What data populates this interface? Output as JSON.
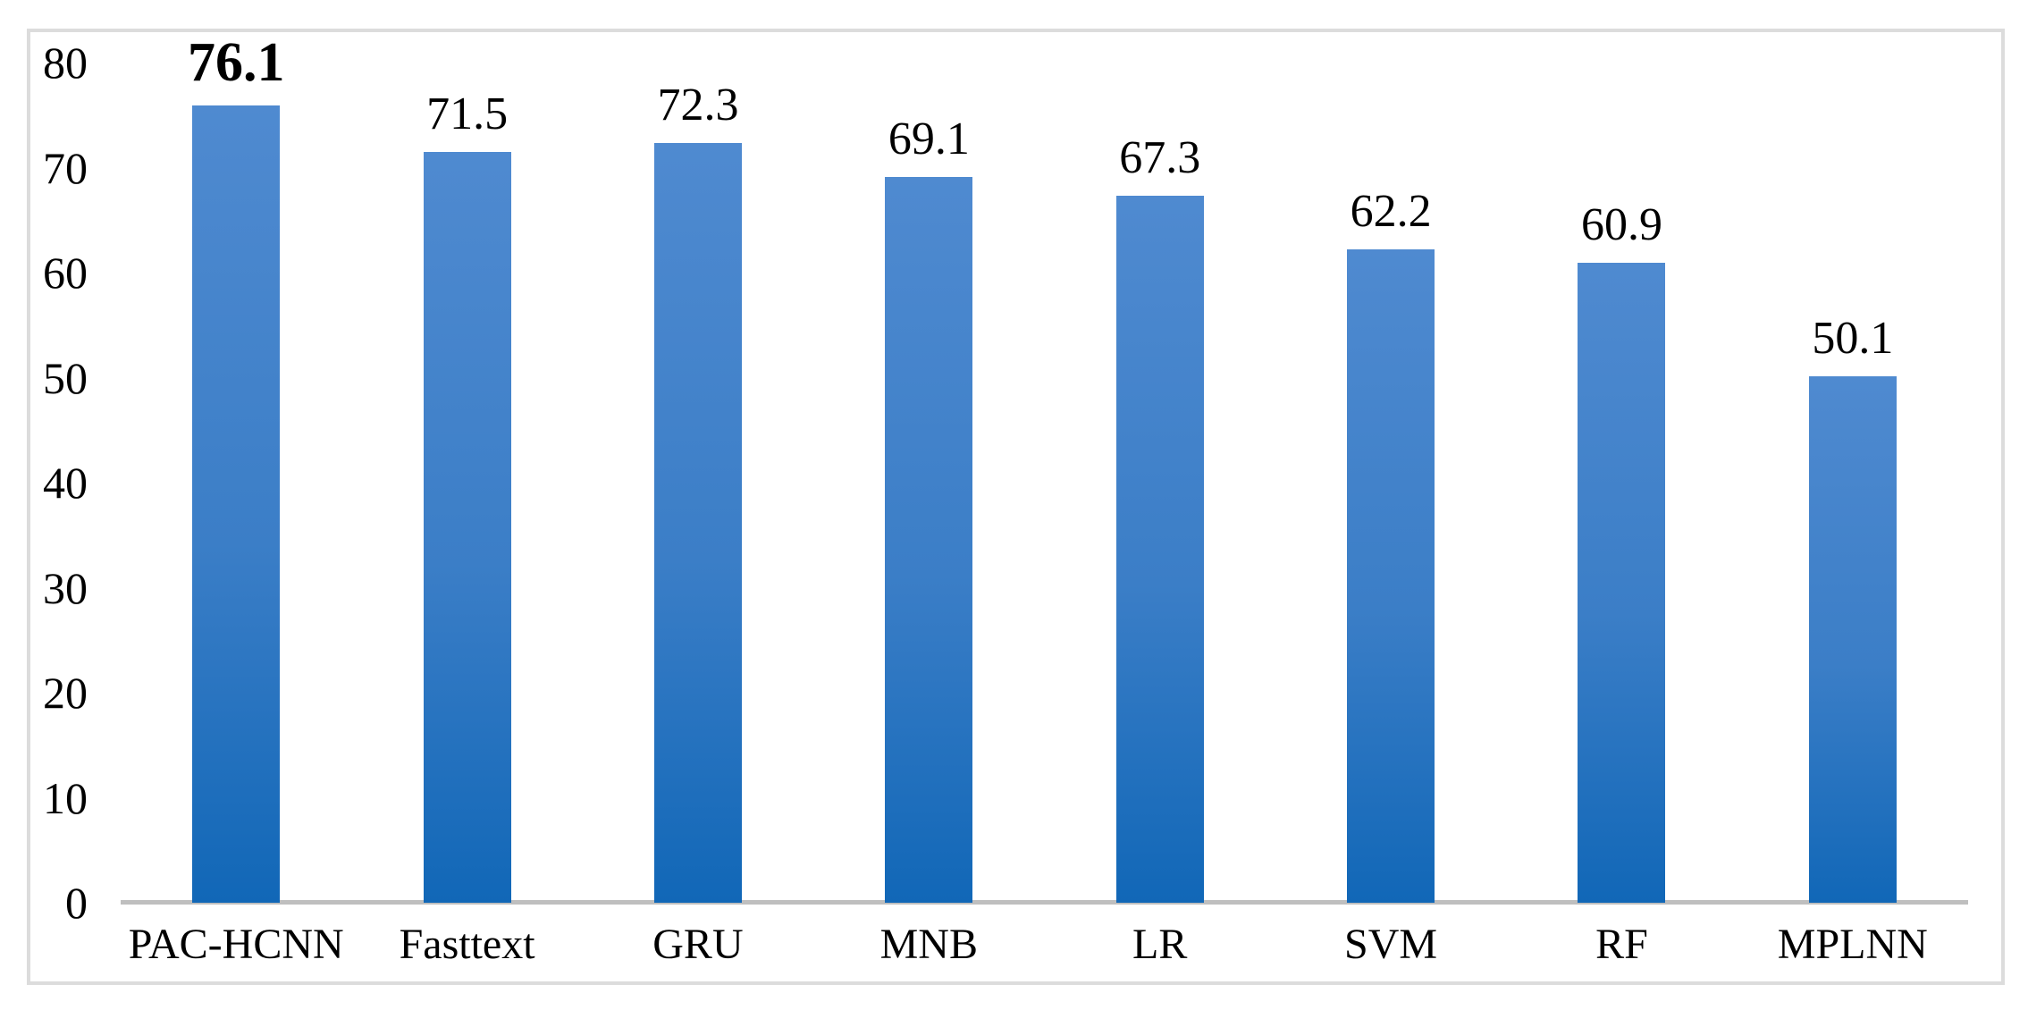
{
  "figure": {
    "background_color": "#ffffff",
    "frame_border_color": "#dcdcdc"
  },
  "chart_data": {
    "type": "bar",
    "title": "",
    "xlabel": "",
    "ylabel": "",
    "categories": [
      "PAC-HCNN",
      "Fasttext",
      "GRU",
      "MNB",
      "LR",
      "SVM",
      "RF",
      "MPLNN"
    ],
    "values": [
      76.1,
      71.5,
      72.3,
      69.1,
      67.3,
      62.2,
      60.9,
      50.1
    ],
    "value_labels": [
      "76.1",
      "71.5",
      "72.3",
      "69.1",
      "67.3",
      "62.2",
      "60.9",
      "50.1"
    ],
    "emphasized_value_index": 0,
    "ylim": [
      0,
      80
    ],
    "y_ticks": [
      "0",
      "10",
      "20",
      "30",
      "40",
      "50",
      "60",
      "70",
      "80"
    ],
    "grid": false,
    "legend": "none",
    "colors": {
      "bar_gradient_top": "#4f8ad0",
      "bar_gradient_mid": "#3b7ec7",
      "bar_gradient_bottom": "#1167b7",
      "axis_line": "#bfbfbf",
      "label_text": "#000000"
    }
  }
}
